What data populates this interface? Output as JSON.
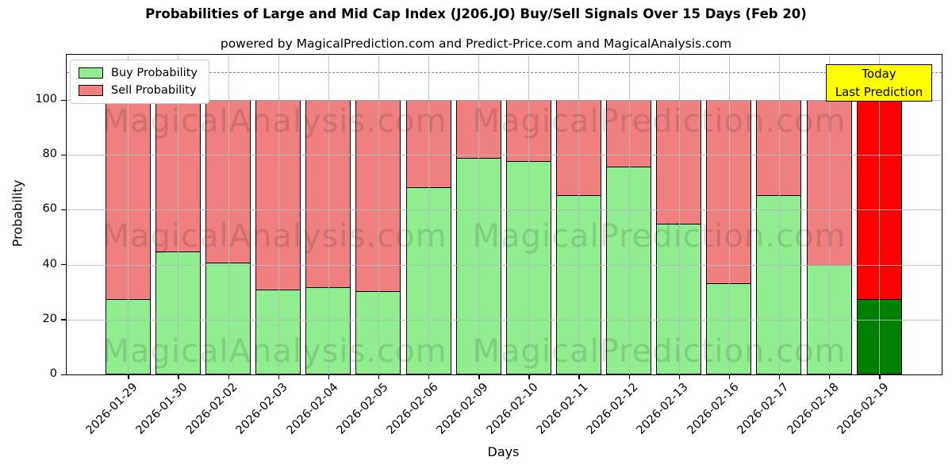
{
  "chart_data": {
    "type": "bar",
    "stacked": true,
    "title": "Probabilities of Large and Mid Cap Index (J206.JO) Buy/Sell Signals Over 15 Days (Feb 20)",
    "subtitle": "powered by MagicalPrediction.com and Predict-Price.com and MagicalAnalysis.com",
    "xlabel": "Days",
    "ylabel": "Probability",
    "ylim": [
      0,
      116.5
    ],
    "yticks": [
      0,
      20,
      40,
      60,
      80,
      100
    ],
    "dashed_line_y": 110,
    "grid": true,
    "legend_position": "upper-left",
    "categories": [
      "2026-01-29",
      "2026-01-30",
      "2026-02-02",
      "2026-02-03",
      "2026-02-04",
      "2026-02-05",
      "2026-02-06",
      "2026-02-09",
      "2026-02-10",
      "2026-02-11",
      "2026-02-12",
      "2026-02-13",
      "2026-02-16",
      "2026-02-17",
      "2026-02-18",
      "2026-02-19"
    ],
    "series": [
      {
        "name": "Buy Probability",
        "color": "#90EE90",
        "values": [
          27.5,
          45,
          41,
          31,
          32,
          30.5,
          68.5,
          79,
          78,
          65.5,
          76,
          55,
          33.5,
          65.5,
          40,
          27.5
        ]
      },
      {
        "name": "Sell Probability",
        "color": "#F08080",
        "values": [
          72.5,
          55,
          59,
          69,
          68,
          69.5,
          31.5,
          21,
          22,
          34.5,
          24,
          45,
          66.5,
          34.5,
          60,
          72.5
        ]
      }
    ],
    "today_bar": {
      "index": 15,
      "buy_color": "#008000",
      "sell_color": "#FF0000"
    },
    "annotation_box": {
      "lines": [
        "Today",
        "Last Prediction"
      ],
      "bg_color": "#FFFF00"
    },
    "watermarks": [
      "MagicalAnalysis.com",
      "MagicalPrediction.com"
    ],
    "colors": {
      "edge": "#000000",
      "dashed_line": "#8A8A8A",
      "grid": "#B2BCBE",
      "annotation_bg": "#FFFF00"
    }
  }
}
